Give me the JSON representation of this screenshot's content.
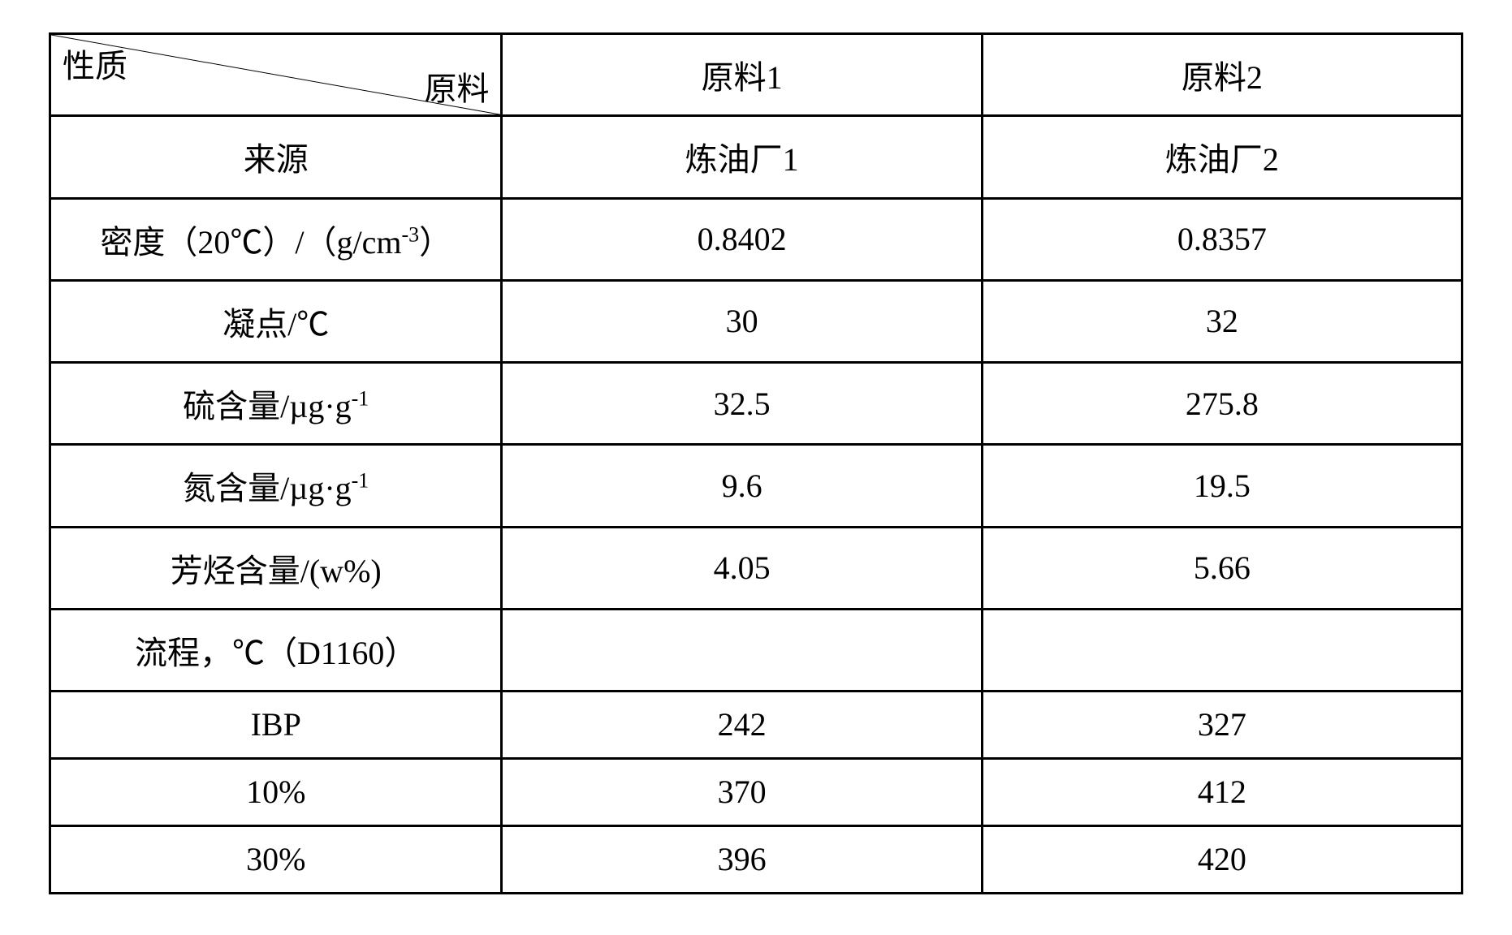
{
  "table": {
    "column_widths_pct": [
      32,
      34,
      34
    ],
    "border_color": "#000000",
    "background_color": "#ffffff",
    "text_color": "#000000",
    "font_size_pt": 30,
    "header": {
      "diag_top_left_label": "性质",
      "diag_bottom_right_label": "原料",
      "col1_label": "原料1",
      "col2_label": "原料2"
    },
    "rows": [
      {
        "label_html": "来源",
        "col1": "炼油厂1",
        "col2": "炼油厂2"
      },
      {
        "label_html": "密度（20℃）/（g/cm<sup>-3</sup>）",
        "col1": "0.8402",
        "col2": "0.8357"
      },
      {
        "label_html": "凝点/℃",
        "col1": "30",
        "col2": "32"
      },
      {
        "label_html": "硫含量/µg·g<sup>-1</sup>",
        "col1": "32.5",
        "col2": "275.8"
      },
      {
        "label_html": "氮含量/µg·g<sup>-1</sup>",
        "col1": "9.6",
        "col2": "19.5"
      },
      {
        "label_html": "芳烃含量/(w%)",
        "col1": "4.05",
        "col2": "5.66"
      },
      {
        "label_html": "流程，℃（D1160）",
        "col1": "",
        "col2": ""
      },
      {
        "label_html": "IBP",
        "col1": "242",
        "col2": "327"
      },
      {
        "label_html": "10%",
        "col1": "370",
        "col2": "412"
      },
      {
        "label_html": "30%",
        "col1": "396",
        "col2": "420"
      }
    ]
  }
}
